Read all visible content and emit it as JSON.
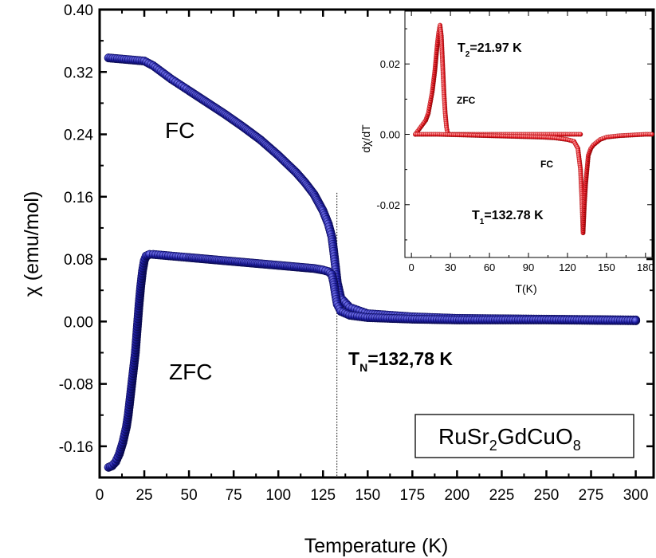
{
  "chart_data": [
    {
      "type": "scatter",
      "xlabel": "Temperature (K)",
      "ylabel": "χ (emu/mol)",
      "xlim": [
        0,
        310
      ],
      "ylim": [
        -0.2,
        0.4
      ],
      "xticks": [
        0,
        25,
        50,
        75,
        100,
        125,
        150,
        175,
        200,
        225,
        250,
        275,
        300
      ],
      "yticks": [
        -0.16,
        -0.08,
        0.0,
        0.08,
        0.16,
        0.24,
        0.32,
        0.4
      ],
      "ytick_labels": [
        "-0.16",
        "-0.08",
        "0.00",
        "0.08",
        "0.16",
        "0.24",
        "0.32",
        "0.40"
      ],
      "marker_color": "#1a1a8c",
      "vline_x": 132.78,
      "series": [
        {
          "name": "FC",
          "x": [
            5,
            10,
            15,
            20,
            25,
            30,
            40,
            50,
            60,
            70,
            80,
            90,
            100,
            110,
            115,
            120,
            125,
            128,
            130,
            131,
            132,
            133,
            135,
            140,
            150,
            175,
            200,
            250,
            300
          ],
          "y": [
            0.338,
            0.337,
            0.336,
            0.335,
            0.334,
            0.328,
            0.311,
            0.296,
            0.281,
            0.266,
            0.25,
            0.233,
            0.213,
            0.191,
            0.178,
            0.163,
            0.142,
            0.125,
            0.108,
            0.09,
            0.07,
            0.05,
            0.03,
            0.018,
            0.01,
            0.006,
            0.004,
            0.003,
            0.002
          ]
        },
        {
          "name": "ZFC",
          "x": [
            5,
            7,
            9,
            11,
            13,
            15,
            16,
            17,
            18,
            19,
            20,
            21,
            22,
            23,
            24,
            25,
            26,
            28,
            30,
            40,
            50,
            60,
            70,
            80,
            90,
            100,
            110,
            120,
            125,
            128,
            130,
            131,
            132,
            133,
            135,
            140,
            150,
            175,
            200,
            250,
            300
          ],
          "y": [
            -0.187,
            -0.185,
            -0.18,
            -0.17,
            -0.155,
            -0.135,
            -0.12,
            -0.1,
            -0.08,
            -0.06,
            -0.04,
            -0.01,
            0.02,
            0.045,
            0.065,
            0.078,
            0.084,
            0.086,
            0.086,
            0.084,
            0.082,
            0.08,
            0.078,
            0.076,
            0.074,
            0.072,
            0.07,
            0.068,
            0.066,
            0.064,
            0.06,
            0.05,
            0.035,
            0.022,
            0.013,
            0.008,
            0.005,
            0.003,
            0.002,
            0.002,
            0.001
          ]
        }
      ],
      "annotations": {
        "fc": "FC",
        "zfc": "ZFC",
        "tn_main": "T",
        "tn_sub": "N",
        "tn_value": "=132,78 K",
        "formula": [
          "RuSr",
          "2",
          "GdCuO",
          "8"
        ]
      }
    },
    {
      "type": "line",
      "xlabel": "T(K)",
      "ylabel": "dχ/dT",
      "xlim": [
        -5,
        185
      ],
      "ylim": [
        -0.035,
        0.035
      ],
      "xticks": [
        0,
        30,
        60,
        90,
        120,
        150,
        180
      ],
      "yticks": [
        -0.02,
        0.0,
        0.02
      ],
      "ytick_labels": [
        "-0.02",
        "0.00",
        "0.02"
      ],
      "marker_color": "#e8141e",
      "series": [
        {
          "name": "ZFC",
          "x": [
            3,
            5,
            7,
            9,
            11,
            12,
            13,
            14,
            15,
            16,
            17,
            18,
            19,
            20,
            21,
            22,
            23,
            24,
            25,
            26,
            27,
            28,
            30,
            35,
            40,
            50,
            60,
            80,
            100,
            120,
            130
          ],
          "y": [
            0.0,
            0.001,
            0.002,
            0.003,
            0.004,
            0.005,
            0.006,
            0.008,
            0.01,
            0.012,
            0.015,
            0.018,
            0.022,
            0.026,
            0.029,
            0.031,
            0.028,
            0.02,
            0.012,
            0.006,
            0.002,
            0.0,
            0.0,
            0.0,
            0.0,
            0.0,
            0.0,
            0.0,
            0.0,
            0.0,
            0.0
          ]
        },
        {
          "name": "FC",
          "x": [
            3,
            20,
            40,
            60,
            80,
            100,
            110,
            120,
            125,
            128,
            130,
            131,
            132,
            133,
            134,
            135,
            136,
            138,
            140,
            145,
            150,
            160,
            170,
            180,
            185
          ],
          "y": [
            0.0,
            0.0,
            -0.0002,
            -0.0004,
            -0.0006,
            -0.0008,
            -0.001,
            -0.0015,
            -0.002,
            -0.004,
            -0.01,
            -0.018,
            -0.028,
            -0.02,
            -0.014,
            -0.01,
            -0.006,
            -0.004,
            -0.003,
            -0.0015,
            -0.0008,
            -0.0004,
            -0.0002,
            0.0,
            0.0
          ]
        }
      ],
      "annotations": {
        "t2_main": "T",
        "t2_sub": "2",
        "t2_value": "=21.97 K",
        "t1_main": "T",
        "t1_sub": "1",
        "t1_value": "=132.78 K",
        "zfc": "ZFC",
        "fc": "FC"
      }
    }
  ]
}
